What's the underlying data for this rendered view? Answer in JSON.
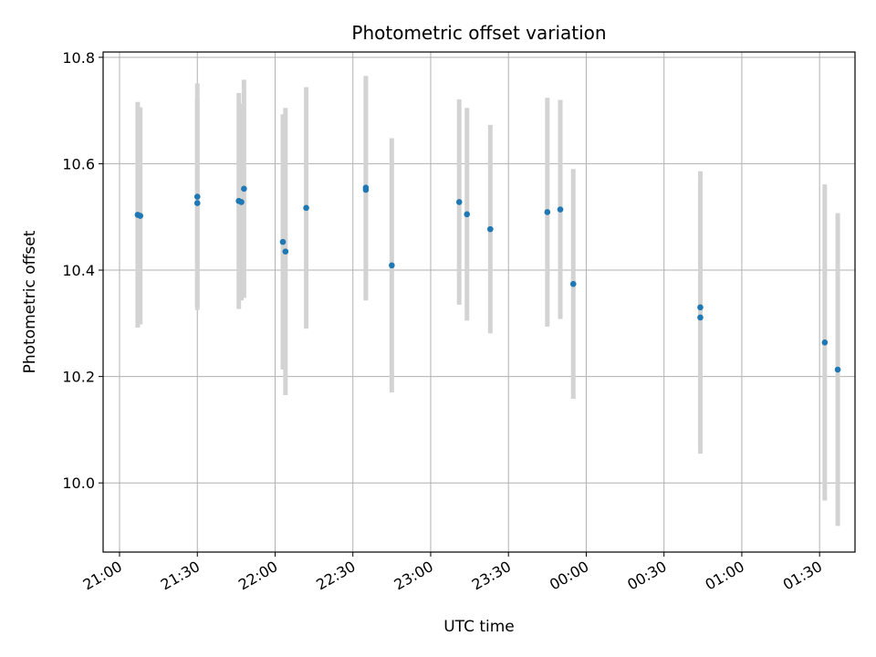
{
  "chart_data": {
    "type": "scatter",
    "title": "Photometric offset variation",
    "xlabel": "UTC time",
    "ylabel": "Photometric offset",
    "grid": true,
    "legend": "none",
    "x_ticks": [
      "21:00",
      "21:30",
      "22:00",
      "22:30",
      "23:00",
      "23:30",
      "00:00",
      "00:30",
      "01:00",
      "01:30"
    ],
    "y_ticks": [
      "10.0",
      "10.2",
      "10.4",
      "10.6",
      "10.8"
    ],
    "xlim": [
      "21:00",
      "01:50"
    ],
    "ylim": [
      9.87,
      10.81
    ],
    "colors": {
      "points": "#1f77b4",
      "error_bars": "#d3d3d3",
      "grid": "#b0b0b0"
    },
    "points": [
      {
        "x": "21:07",
        "y": 10.504,
        "err": 0.212
      },
      {
        "x": "21:08",
        "y": 10.502,
        "err": 0.204
      },
      {
        "x": "21:30",
        "y": 10.526,
        "err": 0.196
      },
      {
        "x": "21:30",
        "y": 10.538,
        "err": 0.213
      },
      {
        "x": "21:46",
        "y": 10.53,
        "err": 0.203
      },
      {
        "x": "21:47",
        "y": 10.528,
        "err": 0.185
      },
      {
        "x": "21:48",
        "y": 10.553,
        "err": 0.205
      },
      {
        "x": "22:03",
        "y": 10.453,
        "err": 0.24
      },
      {
        "x": "22:04",
        "y": 10.435,
        "err": 0.27
      },
      {
        "x": "22:12",
        "y": 10.517,
        "err": 0.227
      },
      {
        "x": "22:35",
        "y": 10.555,
        "err": 0.21
      },
      {
        "x": "22:35",
        "y": 10.551,
        "err": 0.208
      },
      {
        "x": "22:45",
        "y": 10.409,
        "err": 0.239
      },
      {
        "x": "23:11",
        "y": 10.528,
        "err": 0.193
      },
      {
        "x": "23:14",
        "y": 10.505,
        "err": 0.2
      },
      {
        "x": "23:23",
        "y": 10.477,
        "err": 0.196
      },
      {
        "x": "23:45",
        "y": 10.509,
        "err": 0.215
      },
      {
        "x": "23:50",
        "y": 10.514,
        "err": 0.206
      },
      {
        "x": "23:55",
        "y": 10.374,
        "err": 0.216
      },
      {
        "x": "00:44",
        "y": 10.33,
        "err": 0.256
      },
      {
        "x": "00:44",
        "y": 10.311,
        "err": 0.256
      },
      {
        "x": "01:32",
        "y": 10.264,
        "err": 0.297
      },
      {
        "x": "01:37",
        "y": 10.213,
        "err": 0.294
      }
    ]
  }
}
